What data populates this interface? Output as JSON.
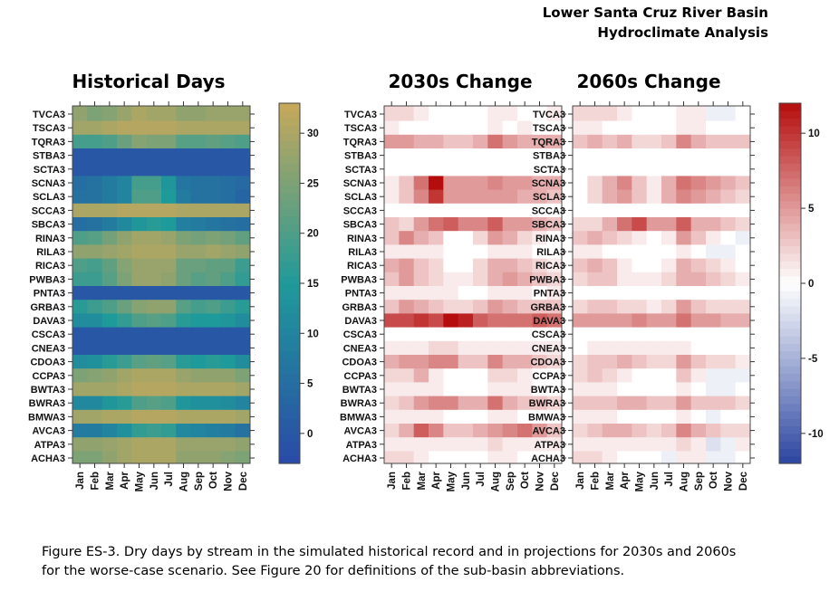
{
  "header": {
    "line1": "Lower Santa Cruz River Basin",
    "line2": "Hydroclimate Analysis"
  },
  "caption": {
    "line1": "Figure ES-3. Dry days by stream in the simulated historical record and in projections for 2030s and 2060s",
    "line2": "for the worse-case scenario.  See Figure 20 for definitions of the sub-basin abbreviations."
  },
  "chart_data": [
    {
      "type": "heatmap",
      "title": "Historical Days",
      "x": [
        "Jan",
        "Feb",
        "Mar",
        "Apr",
        "May",
        "Jun",
        "Jul",
        "Aug",
        "Sep",
        "Oct",
        "Nov",
        "Dec"
      ],
      "y": [
        "TVCA3",
        "TSCA3",
        "TQRA3",
        "STBA3",
        "SCTA3",
        "SCNA3",
        "SCLA3",
        "SCCA3",
        "SBCA3",
        "RINA3",
        "RILA3",
        "RICA3",
        "PWBA3",
        "PNTA3",
        "GRBA3",
        "DAVA3",
        "CSCA3",
        "CNEA3",
        "CDOA3",
        "CCPA3",
        "BWTA3",
        "BWRA3",
        "BMWA3",
        "AVCA3",
        "ATPA3",
        "ACHA3"
      ],
      "values": [
        [
          27,
          25,
          26,
          28,
          30,
          29,
          29,
          27,
          27,
          28,
          28,
          28
        ],
        [
          29,
          29,
          30,
          31,
          31,
          31,
          31,
          30,
          30,
          30,
          30,
          30
        ],
        [
          19,
          19,
          20,
          23,
          26,
          25,
          25,
          21,
          21,
          22,
          21,
          20
        ],
        [
          0,
          0,
          0,
          0,
          0,
          0,
          0,
          0,
          0,
          0,
          0,
          0
        ],
        [
          0,
          0,
          0,
          0,
          0,
          0,
          0,
          0,
          0,
          0,
          0,
          0
        ],
        [
          5,
          6,
          8,
          10,
          19,
          19,
          14,
          7,
          6,
          6,
          5,
          4
        ],
        [
          6,
          6,
          8,
          10,
          20,
          20,
          15,
          8,
          6,
          6,
          5,
          3
        ],
        [
          30,
          30,
          30,
          31,
          31,
          31,
          31,
          30,
          30,
          30,
          30,
          30
        ],
        [
          5,
          6,
          8,
          11,
          14,
          16,
          15,
          9,
          8,
          7,
          6,
          5
        ],
        [
          20,
          21,
          24,
          27,
          29,
          29,
          28,
          25,
          24,
          25,
          24,
          22
        ],
        [
          27,
          27,
          28,
          29,
          30,
          30,
          30,
          28,
          28,
          29,
          28,
          27
        ],
        [
          20,
          19,
          22,
          26,
          28,
          28,
          28,
          23,
          23,
          22,
          22,
          18
        ],
        [
          18,
          18,
          21,
          25,
          28,
          28,
          27,
          23,
          21,
          22,
          20,
          17
        ],
        [
          0,
          0,
          0,
          0,
          0,
          0,
          0,
          0,
          0,
          0,
          0,
          0
        ],
        [
          16,
          18,
          20,
          23,
          26,
          27,
          27,
          21,
          19,
          20,
          18,
          16
        ],
        [
          12,
          12,
          15,
          17,
          20,
          21,
          20,
          16,
          15,
          15,
          14,
          12
        ],
        [
          0,
          0,
          0,
          0,
          0,
          0,
          0,
          0,
          0,
          0,
          0,
          0
        ],
        [
          0,
          0,
          0,
          0,
          0,
          0,
          0,
          0,
          0,
          0,
          0,
          0
        ],
        [
          12,
          13,
          16,
          18,
          21,
          22,
          21,
          16,
          15,
          16,
          15,
          12
        ],
        [
          25,
          26,
          27,
          29,
          30,
          30,
          30,
          28,
          27,
          27,
          27,
          25
        ],
        [
          29,
          29,
          29,
          30,
          31,
          31,
          31,
          30,
          30,
          30,
          30,
          29
        ],
        [
          11,
          11,
          14,
          16,
          20,
          21,
          20,
          14,
          13,
          13,
          12,
          10
        ],
        [
          29,
          29,
          30,
          30,
          31,
          31,
          31,
          30,
          30,
          30,
          30,
          29
        ],
        [
          8,
          8,
          10,
          13,
          17,
          18,
          17,
          11,
          10,
          9,
          8,
          6
        ],
        [
          27,
          27,
          28,
          29,
          30,
          30,
          30,
          28,
          28,
          28,
          28,
          27
        ],
        [
          25,
          25,
          27,
          29,
          30,
          30,
          30,
          27,
          27,
          27,
          26,
          25
        ]
      ],
      "colorbar": {
        "ticks": [
          0,
          5,
          10,
          15,
          20,
          25,
          30
        ],
        "range": [
          -3,
          33
        ]
      },
      "colors": {
        "low": "#2a4aa8",
        "mid": "#1f9a9a",
        "high": "#c8a85a"
      }
    },
    {
      "type": "heatmap",
      "title": "2030s Change",
      "x": [
        "Jan",
        "Feb",
        "Mar",
        "Apr",
        "May",
        "Jun",
        "Jul",
        "Aug",
        "Sep",
        "Oct",
        "Nov",
        "Dec"
      ],
      "y": [
        "TVCA3",
        "TSCA3",
        "TQRA3",
        "STBA3",
        "SCTA3",
        "SCNA3",
        "SCLA3",
        "SCCA3",
        "SBCA3",
        "RINA3",
        "RILA3",
        "RICA3",
        "PWBA3",
        "PNTA3",
        "GRBA3",
        "DAVA3",
        "CSCA3",
        "CNEA3",
        "CDOA3",
        "CCPA3",
        "BWTA3",
        "BWRA3",
        "BMWA3",
        "AVCA3",
        "ATPA3",
        "ACHA3"
      ],
      "values": [
        [
          2,
          2,
          1,
          0,
          0,
          0,
          0,
          1,
          1,
          0,
          0,
          1
        ],
        [
          1,
          0,
          0,
          0,
          0,
          0,
          0,
          1,
          0,
          1,
          0,
          0
        ],
        [
          5,
          5,
          4,
          4,
          3,
          3,
          4,
          7,
          5,
          4,
          4,
          4
        ],
        [
          0,
          0,
          0,
          0,
          0,
          0,
          0,
          0,
          0,
          0,
          0,
          0
        ],
        [
          0,
          0,
          0,
          0,
          0,
          0,
          0,
          0,
          0,
          0,
          0,
          0
        ],
        [
          1,
          3,
          7,
          12,
          5,
          5,
          5,
          6,
          5,
          5,
          4,
          4
        ],
        [
          1,
          3,
          6,
          10,
          5,
          5,
          5,
          5,
          5,
          4,
          4,
          3
        ],
        [
          0,
          0,
          0,
          0,
          0,
          0,
          0,
          0,
          0,
          0,
          0,
          0
        ],
        [
          3,
          2,
          5,
          7,
          8,
          6,
          6,
          8,
          5,
          5,
          4,
          3
        ],
        [
          3,
          6,
          4,
          3,
          0,
          0,
          2,
          5,
          4,
          2,
          1,
          0
        ],
        [
          1,
          1,
          1,
          1,
          0,
          0,
          0,
          1,
          1,
          1,
          0,
          0
        ],
        [
          4,
          5,
          3,
          2,
          0,
          0,
          2,
          4,
          4,
          3,
          2,
          1
        ],
        [
          3,
          5,
          3,
          2,
          1,
          1,
          2,
          4,
          5,
          4,
          3,
          2
        ],
        [
          1,
          1,
          1,
          1,
          1,
          0,
          0,
          1,
          1,
          1,
          0,
          1
        ],
        [
          3,
          5,
          4,
          3,
          2,
          2,
          3,
          5,
          4,
          3,
          3,
          3
        ],
        [
          9,
          9,
          10,
          9,
          12,
          11,
          8,
          7,
          7,
          7,
          8,
          7
        ],
        [
          0,
          0,
          0,
          0,
          0,
          0,
          0,
          0,
          0,
          0,
          0,
          0
        ],
        [
          1,
          1,
          1,
          2,
          2,
          1,
          1,
          1,
          1,
          1,
          1,
          1
        ],
        [
          4,
          5,
          5,
          6,
          6,
          3,
          3,
          6,
          4,
          4,
          3,
          2
        ],
        [
          2,
          2,
          4,
          1,
          0,
          0,
          0,
          2,
          2,
          1,
          0,
          0
        ],
        [
          1,
          1,
          1,
          1,
          0,
          0,
          0,
          1,
          1,
          1,
          0,
          0
        ],
        [
          2,
          3,
          5,
          6,
          6,
          4,
          4,
          7,
          4,
          3,
          3,
          2
        ],
        [
          1,
          1,
          1,
          1,
          0,
          0,
          0,
          1,
          1,
          0,
          0,
          0
        ],
        [
          2,
          4,
          8,
          6,
          3,
          3,
          4,
          5,
          6,
          7,
          5,
          3
        ],
        [
          1,
          1,
          1,
          1,
          1,
          1,
          1,
          2,
          1,
          1,
          1,
          1
        ],
        [
          2,
          2,
          1,
          0,
          0,
          0,
          0,
          1,
          1,
          0,
          0,
          0
        ]
      ]
    },
    {
      "type": "heatmap",
      "title": "2060s Change",
      "x": [
        "Jan",
        "Feb",
        "Mar",
        "Apr",
        "May",
        "Jun",
        "Jul",
        "Aug",
        "Sep",
        "Oct",
        "Nov",
        "Dec"
      ],
      "y": [
        "TVCA3",
        "TSCA3",
        "TQRA3",
        "STBA3",
        "SCTA3",
        "SCNA3",
        "SCLA3",
        "SCCA3",
        "SBCA3",
        "RINA3",
        "RILA3",
        "RICA3",
        "PWBA3",
        "PNTA3",
        "GRBA3",
        "DAVA3",
        "CSCA3",
        "CNEA3",
        "CDOA3",
        "CCPA3",
        "BWTA3",
        "BWRA3",
        "BMWA3",
        "AVCA3",
        "ATPA3",
        "ACHA3"
      ],
      "values": [
        [
          2,
          2,
          2,
          1,
          0,
          0,
          0,
          1,
          1,
          -1,
          -1,
          0
        ],
        [
          1,
          1,
          0,
          0,
          0,
          0,
          0,
          1,
          1,
          0,
          0,
          0
        ],
        [
          3,
          4,
          3,
          4,
          2,
          2,
          3,
          6,
          4,
          3,
          3,
          3
        ],
        [
          0,
          0,
          0,
          0,
          0,
          0,
          0,
          0,
          0,
          0,
          0,
          0
        ],
        [
          0,
          0,
          0,
          0,
          0,
          0,
          0,
          0,
          0,
          0,
          0,
          0
        ],
        [
          0,
          2,
          4,
          6,
          3,
          1,
          4,
          7,
          6,
          5,
          4,
          3
        ],
        [
          0,
          2,
          4,
          5,
          3,
          1,
          4,
          6,
          5,
          4,
          3,
          2
        ],
        [
          0,
          0,
          0,
          0,
          0,
          0,
          0,
          0,
          0,
          0,
          0,
          0
        ],
        [
          2,
          2,
          4,
          7,
          9,
          5,
          5,
          8,
          4,
          4,
          3,
          2
        ],
        [
          3,
          4,
          3,
          2,
          1,
          0,
          1,
          5,
          3,
          1,
          0,
          -1
        ],
        [
          1,
          1,
          0,
          0,
          0,
          0,
          0,
          1,
          0,
          -1,
          -1,
          0
        ],
        [
          3,
          4,
          3,
          1,
          0,
          0,
          1,
          4,
          3,
          2,
          1,
          0
        ],
        [
          2,
          3,
          3,
          1,
          1,
          1,
          2,
          4,
          4,
          3,
          2,
          1
        ],
        [
          0,
          0,
          0,
          0,
          0,
          0,
          0,
          0,
          0,
          0,
          0,
          0
        ],
        [
          2,
          3,
          3,
          2,
          2,
          1,
          2,
          5,
          3,
          2,
          2,
          2
        ],
        [
          5,
          5,
          5,
          5,
          6,
          5,
          5,
          7,
          5,
          5,
          4,
          4
        ],
        [
          0,
          0,
          0,
          0,
          0,
          0,
          0,
          0,
          0,
          0,
          0,
          0
        ],
        [
          0,
          1,
          1,
          1,
          1,
          1,
          1,
          1,
          0,
          0,
          0,
          0
        ],
        [
          2,
          3,
          3,
          4,
          3,
          2,
          2,
          5,
          3,
          2,
          2,
          1
        ],
        [
          2,
          3,
          2,
          1,
          0,
          0,
          0,
          3,
          1,
          -1,
          -1,
          -1
        ],
        [
          1,
          1,
          1,
          0,
          0,
          0,
          0,
          1,
          0,
          -1,
          -1,
          0
        ],
        [
          3,
          3,
          3,
          4,
          4,
          3,
          3,
          5,
          3,
          3,
          3,
          2
        ],
        [
          1,
          1,
          1,
          0,
          0,
          0,
          0,
          1,
          0,
          -1,
          0,
          0
        ],
        [
          2,
          3,
          4,
          4,
          3,
          2,
          3,
          6,
          4,
          3,
          2,
          2
        ],
        [
          1,
          1,
          1,
          1,
          1,
          1,
          1,
          2,
          1,
          -2,
          -1,
          1
        ],
        [
          2,
          2,
          1,
          0,
          0,
          0,
          -1,
          1,
          1,
          -1,
          -1,
          0
        ]
      ],
      "colorbar": {
        "ticks": [
          -10,
          -5,
          0,
          5,
          10
        ],
        "range": [
          -12,
          12
        ]
      },
      "colors": {
        "neg": "#2b45a0",
        "zero": "#ffffff",
        "pos": "#b50d0d"
      }
    }
  ]
}
